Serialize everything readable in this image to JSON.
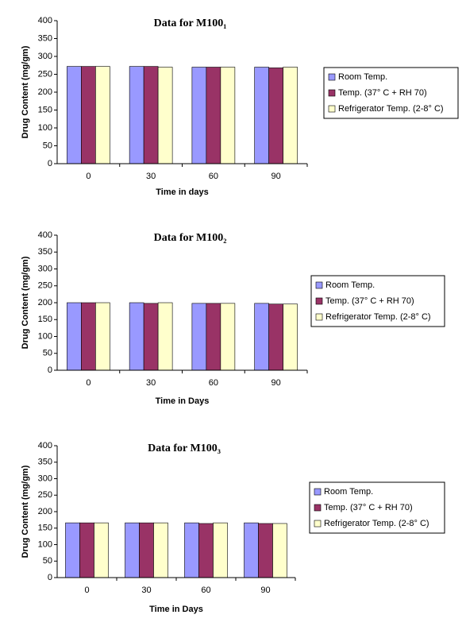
{
  "chart_data": [
    {
      "type": "bar",
      "title": "Data for M100₁",
      "x_label": "Time in days",
      "y_label": "Drug Content (mg/gm)",
      "categories": [
        "0",
        "30",
        "60",
        "90"
      ],
      "series": [
        {
          "name": "Room Temp.",
          "color": "#9999ff",
          "values": [
            272,
            272,
            270,
            270
          ]
        },
        {
          "name": "Temp. (37° C + RH 70)",
          "color": "#993366",
          "values": [
            272,
            272,
            270,
            268
          ]
        },
        {
          "name": "Refrigerator Temp. (2-8° C)",
          "color": "#ffffcc",
          "values": [
            272,
            270,
            270,
            270
          ]
        }
      ],
      "ylim": [
        0,
        400
      ],
      "yticks": [
        0,
        50,
        100,
        150,
        200,
        250,
        300,
        350,
        400
      ],
      "legend": "right"
    },
    {
      "type": "bar",
      "title": "Data for M100₂",
      "x_label": "Time in Days",
      "y_label": "Drug Content (mg/gm)",
      "categories": [
        "0",
        "30",
        "60",
        "90"
      ],
      "series": [
        {
          "name": "Room Temp.",
          "color": "#9999ff",
          "values": [
            200,
            200,
            198,
            198
          ]
        },
        {
          "name": "Temp. (37° C + RH 70)",
          "color": "#993366",
          "values": [
            200,
            198,
            198,
            196
          ]
        },
        {
          "name": "Refrigerator Temp. (2-8° C)",
          "color": "#ffffcc",
          "values": [
            200,
            200,
            198,
            196
          ]
        }
      ],
      "ylim": [
        0,
        400
      ],
      "yticks": [
        0,
        50,
        100,
        150,
        200,
        250,
        300,
        350,
        400
      ],
      "legend": "right"
    },
    {
      "type": "bar",
      "title": "Data for M100₃",
      "x_label": "Time in Days",
      "y_label": "Drug Content (mg/gm)",
      "categories": [
        "0",
        "30",
        "60",
        "90"
      ],
      "series": [
        {
          "name": "Room Temp.",
          "color": "#9999ff",
          "values": [
            166,
            166,
            166,
            166
          ]
        },
        {
          "name": "Temp. (37° C + RH 70)",
          "color": "#993366",
          "values": [
            166,
            166,
            164,
            164
          ]
        },
        {
          "name": "Refrigerator Temp. (2-8° C)",
          "color": "#ffffcc",
          "values": [
            166,
            166,
            166,
            164
          ]
        }
      ],
      "ylim": [
        0,
        400
      ],
      "yticks": [
        0,
        50,
        100,
        150,
        200,
        250,
        300,
        350,
        400
      ],
      "legend": "right"
    }
  ]
}
